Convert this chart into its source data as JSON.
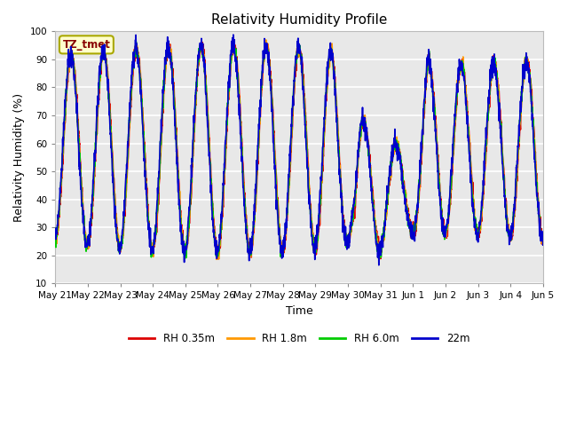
{
  "title": "Relativity Humidity Profile",
  "xlabel": "Time",
  "ylabel": "Relativity Humidity (%)",
  "ylim": [
    10,
    100
  ],
  "yticks": [
    10,
    20,
    30,
    40,
    50,
    60,
    70,
    80,
    90,
    100
  ],
  "annotation_text": "TZ_tmet",
  "annotation_bg": "#ffffcc",
  "annotation_border": "#aaa800",
  "annotation_text_color": "#880000",
  "fig_bg_color": "#ffffff",
  "plot_bg_color": "#e8e8e8",
  "grid_color": "#ffffff",
  "line_colors": [
    "#dd0000",
    "#ff9900",
    "#00cc00",
    "#0000cc"
  ],
  "line_labels": [
    "RH 0.35m",
    "RH 1.8m",
    "RH 6.0m",
    "22m"
  ],
  "line_width": 1.2,
  "n_days": 15,
  "points_per_day": 144,
  "xtick_labels": [
    "May 21",
    "May 22",
    "May 23",
    "May 24",
    "May 25",
    "May 26",
    "May 27",
    "May 28",
    "May 29",
    "May 30",
    "May 31",
    "Jun 1",
    "Jun 2",
    "Jun 3",
    "Jun 4",
    "Jun 5"
  ]
}
